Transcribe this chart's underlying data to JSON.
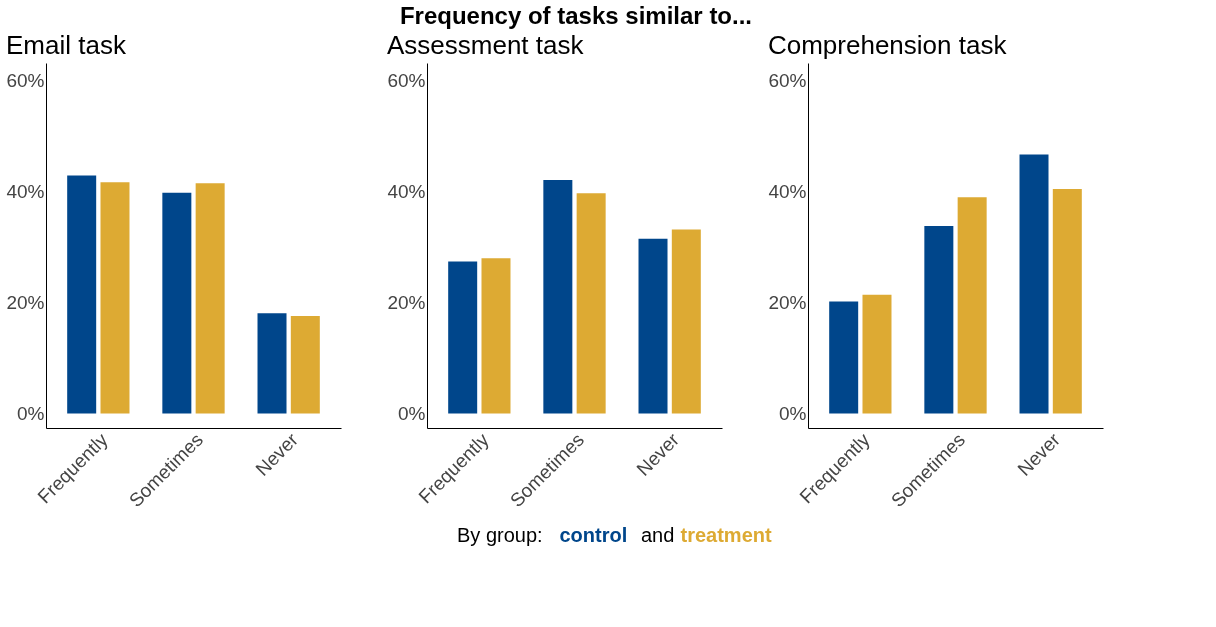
{
  "chart_data": [
    {
      "type": "bar",
      "title": "Email task",
      "annotations": [
        "Frequency of tasks similar to...",
        "and"
      ],
      "legend_title": "By group:",
      "legend": "bottom",
      "categories": [
        "Frequently",
        "Sometimes",
        "Never"
      ],
      "ylim": [
        -2.6,
        63.2
      ],
      "yticks": [
        {
          "value": 0,
          "label": "0%"
        },
        {
          "value": 20,
          "label": "20%"
        },
        {
          "value": 40,
          "label": "40%"
        },
        {
          "value": 60,
          "label": "60%"
        }
      ],
      "grid": false,
      "series": [
        {
          "name": "control",
          "color": "#00468b",
          "values": [
            42.9,
            39.8,
            18.1
          ]
        },
        {
          "name": "treatment",
          "color": "#ddaa33",
          "values": [
            41.7,
            41.5,
            17.6
          ]
        }
      ]
    },
    {
      "type": "bar",
      "title": "Assessment task",
      "categories": [
        "Frequently",
        "Sometimes",
        "Never"
      ],
      "ylim": [
        -2.6,
        63.2
      ],
      "yticks": [
        {
          "value": 0,
          "label": "0%"
        },
        {
          "value": 20,
          "label": "20%"
        },
        {
          "value": 40,
          "label": "40%"
        },
        {
          "value": 60,
          "label": "60%"
        }
      ],
      "grid": false,
      "series": [
        {
          "color": "#00468b",
          "values": [
            27.4,
            42.1,
            31.5
          ]
        },
        {
          "color": "#ddaa33",
          "values": [
            28.0,
            39.7,
            33.2
          ]
        }
      ]
    },
    {
      "type": "bar",
      "title": "Comprehension task",
      "categories": [
        "Frequently",
        "Sometimes",
        "Never"
      ],
      "ylim": [
        -2.6,
        63.2
      ],
      "yticks": [
        {
          "value": 0,
          "label": "0%"
        },
        {
          "value": 20,
          "label": "20%"
        },
        {
          "value": 40,
          "label": "40%"
        },
        {
          "value": 60,
          "label": "60%"
        }
      ],
      "grid": false,
      "series": [
        {
          "color": "#00468b",
          "values": [
            20.2,
            33.8,
            46.7
          ]
        },
        {
          "color": "#ddaa33",
          "values": [
            21.4,
            39.0,
            40.5
          ]
        }
      ]
    }
  ]
}
